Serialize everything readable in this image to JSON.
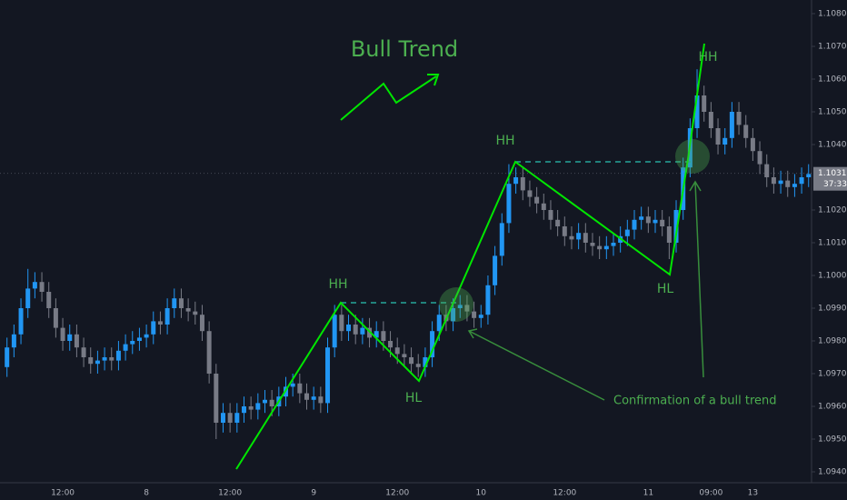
{
  "chart_data": {
    "type": "candlestick",
    "title": "Bull Trend",
    "labels": [
      "HH",
      "HH",
      "HH",
      "HL",
      "HL"
    ],
    "note": "Confirmation of a bull trend",
    "up_color": "#2196f3",
    "down_color": "#787b86",
    "grid": false,
    "last_price": {
      "value": 1.10312,
      "label": "1.10312"
    },
    "countdown": "37:33",
    "ylim": [
      1.094,
      1.108
    ],
    "yticks": [
      {
        "value": 1.094,
        "label": "1.09400"
      },
      {
        "value": 1.095,
        "label": "1.09500"
      },
      {
        "value": 1.096,
        "label": "1.09600"
      },
      {
        "value": 1.097,
        "label": "1.09700"
      },
      {
        "value": 1.098,
        "label": "1.09800"
      },
      {
        "value": 1.099,
        "label": "1.09900"
      },
      {
        "value": 1.1,
        "label": "1.10000"
      },
      {
        "value": 1.101,
        "label": "1.10100"
      },
      {
        "value": 1.102,
        "label": "1.10200"
      },
      {
        "value": 1.104,
        "label": "1.10400"
      },
      {
        "value": 1.105,
        "label": "1.10500"
      },
      {
        "value": 1.106,
        "label": "1.10600"
      },
      {
        "value": 1.107,
        "label": "1.10700"
      },
      {
        "value": 1.108,
        "label": "1.10800"
      }
    ],
    "categories": [
      null,
      null,
      null,
      null,
      null,
      null,
      null,
      null,
      "12:00",
      null,
      null,
      null,
      null,
      null,
      null,
      null,
      null,
      null,
      null,
      null,
      "8",
      null,
      null,
      null,
      null,
      null,
      null,
      null,
      null,
      null,
      null,
      null,
      "12:00",
      null,
      null,
      null,
      null,
      null,
      null,
      null,
      null,
      null,
      null,
      null,
      "9",
      null,
      null,
      null,
      null,
      null,
      null,
      null,
      null,
      null,
      null,
      null,
      "12:00",
      null,
      null,
      null,
      null,
      null,
      null,
      null,
      null,
      null,
      null,
      null,
      "10",
      null,
      null,
      null,
      null,
      null,
      null,
      null,
      null,
      null,
      null,
      null,
      "12:00",
      null,
      null,
      null,
      null,
      null,
      null,
      null,
      null,
      null,
      null,
      null,
      "11",
      null,
      null,
      null,
      null,
      null,
      null,
      null,
      null,
      "09:00",
      null,
      null,
      null,
      null,
      null,
      "13",
      null,
      null,
      null,
      null,
      null,
      null,
      null,
      null
    ],
    "open": [
      1.0972,
      1.0978,
      1.0982,
      1.099,
      1.0996,
      1.0998,
      1.0995,
      1.099,
      1.0984,
      1.098,
      1.0982,
      1.0978,
      1.0975,
      1.0973,
      1.0974,
      1.0975,
      1.0974,
      1.0977,
      1.0979,
      1.098,
      1.0981,
      1.0982,
      1.0986,
      1.0985,
      1.099,
      1.0993,
      1.099,
      1.0989,
      1.0988,
      1.0983,
      1.097,
      1.0955,
      1.0958,
      1.0955,
      1.0958,
      1.096,
      1.0959,
      1.0961,
      1.0962,
      1.096,
      1.0963,
      1.0966,
      1.0967,
      1.0964,
      1.0962,
      1.0963,
      1.0961,
      1.0978,
      1.0988,
      1.0983,
      1.0985,
      1.0982,
      1.0984,
      1.0981,
      1.0983,
      1.098,
      1.0978,
      1.0976,
      1.0975,
      1.0973,
      1.0972,
      1.0975,
      1.0983,
      1.0988,
      1.0986,
      1.099,
      1.0991,
      1.0989,
      1.0987,
      1.0988,
      1.0997,
      1.1006,
      1.1016,
      1.1028,
      1.103,
      1.1026,
      1.1024,
      1.1022,
      1.102,
      1.1017,
      1.1015,
      1.1012,
      1.1011,
      1.1013,
      1.101,
      1.1009,
      1.1008,
      1.1009,
      1.101,
      1.1012,
      1.1014,
      1.1017,
      1.1018,
      1.1016,
      1.1017,
      1.1015,
      1.101,
      1.102,
      1.1033,
      1.1045,
      1.1055,
      1.105,
      1.1045,
      1.104,
      1.1042,
      1.105,
      1.1046,
      1.1042,
      1.1038,
      1.1034,
      1.103,
      1.1028,
      1.1029,
      1.1027,
      1.1028,
      1.103
    ],
    "high": [
      1.0981,
      1.0985,
      1.0993,
      1.1002,
      1.1001,
      1.1001,
      1.0998,
      1.0993,
      1.0987,
      1.0985,
      1.0985,
      1.0981,
      1.0978,
      1.0977,
      1.0978,
      1.0978,
      1.098,
      1.0982,
      1.0983,
      1.0984,
      1.0985,
      1.0989,
      1.0989,
      1.0993,
      1.0996,
      1.0996,
      1.0993,
      1.0992,
      1.0991,
      1.0986,
      1.0973,
      1.0961,
      1.0961,
      1.0961,
      1.0963,
      1.0963,
      1.0964,
      1.0965,
      1.0965,
      1.0966,
      1.0969,
      1.097,
      1.097,
      1.0967,
      1.0966,
      1.0966,
      1.0981,
      1.0991,
      1.0991,
      1.0988,
      1.0988,
      1.0987,
      1.0987,
      1.0986,
      1.0986,
      1.0983,
      1.0981,
      1.0979,
      1.0978,
      1.0976,
      1.0978,
      1.0986,
      1.0991,
      1.0991,
      1.0993,
      1.0994,
      1.0994,
      1.0992,
      1.0991,
      1.1,
      1.1009,
      1.1019,
      1.1034,
      1.1033,
      1.1033,
      1.1029,
      1.1027,
      1.1025,
      1.1023,
      1.102,
      1.1018,
      1.1015,
      1.1016,
      1.1016,
      1.1013,
      1.1012,
      1.1012,
      1.1013,
      1.1015,
      1.1017,
      1.102,
      1.1021,
      1.1021,
      1.102,
      1.102,
      1.1018,
      1.1023,
      1.1036,
      1.1048,
      1.1063,
      1.1058,
      1.1053,
      1.1048,
      1.1045,
      1.1053,
      1.1053,
      1.1049,
      1.1045,
      1.1041,
      1.1037,
      1.1033,
      1.1032,
      1.1032,
      1.1031,
      1.1033,
      1.1034
    ],
    "low": [
      1.0969,
      1.0975,
      1.0979,
      1.0987,
      1.0993,
      1.0992,
      1.0987,
      1.0981,
      1.0977,
      1.0977,
      1.0975,
      1.0972,
      1.097,
      1.097,
      1.0971,
      1.0971,
      1.0971,
      1.0974,
      1.0976,
      1.0977,
      1.0978,
      1.0979,
      1.0982,
      1.0982,
      1.0987,
      1.0987,
      1.0986,
      1.0985,
      1.098,
      1.0967,
      1.095,
      1.0952,
      1.0952,
      1.0952,
      1.0955,
      1.0956,
      1.0956,
      1.0958,
      1.0957,
      1.0957,
      1.096,
      1.0963,
      1.0961,
      1.0959,
      1.0959,
      1.0958,
      1.0958,
      1.0975,
      1.098,
      1.098,
      1.0979,
      1.0979,
      1.0978,
      1.0978,
      1.0977,
      1.0975,
      1.0973,
      1.0972,
      1.097,
      1.0969,
      1.0969,
      1.0972,
      1.098,
      1.0983,
      1.0983,
      1.0987,
      1.0986,
      1.0984,
      1.0984,
      1.0985,
      1.0994,
      1.1003,
      1.1013,
      1.1025,
      1.1023,
      1.1021,
      1.1019,
      1.1017,
      1.1014,
      1.1012,
      1.1009,
      1.1008,
      1.1008,
      1.1007,
      1.1006,
      1.1005,
      1.1005,
      1.1006,
      1.1007,
      1.1009,
      1.1011,
      1.1014,
      1.1013,
      1.1013,
      1.1012,
      1.1005,
      1.1007,
      1.1017,
      1.103,
      1.1042,
      1.1047,
      1.1042,
      1.1037,
      1.1037,
      1.1039,
      1.1043,
      1.1039,
      1.1035,
      1.1031,
      1.1027,
      1.1025,
      1.1025,
      1.1024,
      1.1024,
      1.1025,
      1.1027
    ],
    "close": [
      1.0978,
      1.0982,
      1.099,
      1.0996,
      1.0998,
      1.0995,
      1.099,
      1.0984,
      1.098,
      1.0982,
      1.0978,
      1.0975,
      1.0973,
      1.0974,
      1.0975,
      1.0974,
      1.0977,
      1.0979,
      1.098,
      1.0981,
      1.0982,
      1.0986,
      1.0985,
      1.099,
      1.0993,
      1.099,
      1.0989,
      1.0988,
      1.0983,
      1.097,
      1.0955,
      1.0958,
      1.0955,
      1.0958,
      1.096,
      1.0959,
      1.0961,
      1.0962,
      1.096,
      1.0963,
      1.0966,
      1.0967,
      1.0964,
      1.0962,
      1.0963,
      1.0961,
      1.0978,
      1.0988,
      1.0983,
      1.0985,
      1.0982,
      1.0984,
      1.0981,
      1.0983,
      1.098,
      1.0978,
      1.0976,
      1.0975,
      1.0973,
      1.0972,
      1.0975,
      1.0983,
      1.0988,
      1.0986,
      1.099,
      1.0991,
      1.0989,
      1.0987,
      1.0988,
      1.0997,
      1.1006,
      1.1016,
      1.1028,
      1.103,
      1.1026,
      1.1024,
      1.1022,
      1.102,
      1.1017,
      1.1015,
      1.1012,
      1.1011,
      1.1013,
      1.101,
      1.1009,
      1.1008,
      1.1009,
      1.101,
      1.1012,
      1.1014,
      1.1017,
      1.1018,
      1.1016,
      1.1017,
      1.1015,
      1.101,
      1.102,
      1.1033,
      1.1045,
      1.1055,
      1.105,
      1.1045,
      1.104,
      1.1042,
      1.105,
      1.1046,
      1.1042,
      1.1038,
      1.1034,
      1.103,
      1.1028,
      1.1029,
      1.1027,
      1.1028,
      1.103,
      1.1031
    ]
  }
}
